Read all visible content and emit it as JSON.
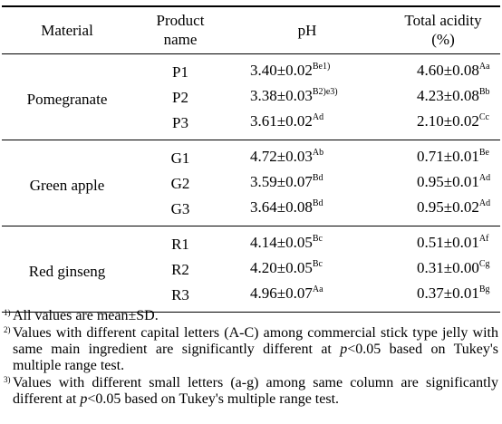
{
  "header": {
    "material": "Material",
    "product_line1": "Product",
    "product_line2": "name",
    "ph": "pH",
    "acidity_line1": "Total acidity",
    "acidity_line2": "(%)"
  },
  "groups": [
    {
      "material": "Pomegranate",
      "rows": [
        {
          "product": "P1",
          "ph": "3.40±0.02",
          "ph_sup": "Be1)",
          "acid": "4.60±0.08",
          "acid_sup": "Aa"
        },
        {
          "product": "P2",
          "ph": "3.38±0.03",
          "ph_sup": "B2)e3)",
          "acid": "4.23±0.08",
          "acid_sup": "Bb"
        },
        {
          "product": "P3",
          "ph": "3.61±0.02",
          "ph_sup": "Ad",
          "acid": "2.10±0.02",
          "acid_sup": "Cc"
        }
      ]
    },
    {
      "material": "Green apple",
      "rows": [
        {
          "product": "G1",
          "ph": "4.72±0.03",
          "ph_sup": "Ab",
          "acid": "0.71±0.01",
          "acid_sup": "Be"
        },
        {
          "product": "G2",
          "ph": "3.59±0.07",
          "ph_sup": "Bd",
          "acid": "0.95±0.01",
          "acid_sup": "Ad"
        },
        {
          "product": "G3",
          "ph": "3.64±0.08",
          "ph_sup": "Bd",
          "acid": "0.95±0.02",
          "acid_sup": "Ad"
        }
      ]
    },
    {
      "material": "Red ginseng",
      "rows": [
        {
          "product": "R1",
          "ph": "4.14±0.05",
          "ph_sup": "Bc",
          "acid": "0.51±0.01",
          "acid_sup": "Af"
        },
        {
          "product": "R2",
          "ph": "4.20±0.05",
          "ph_sup": "Bc",
          "acid": "0.31±0.00",
          "acid_sup": "Cg"
        },
        {
          "product": "R3",
          "ph": "4.96±0.07",
          "ph_sup": "Aa",
          "acid": "0.37±0.01",
          "acid_sup": "Bg"
        }
      ]
    }
  ],
  "footnotes": {
    "n1": {
      "marker": "1)",
      "text": "All values are mean±SD."
    },
    "n2": {
      "marker": "2)",
      "before": "Values with different capital letters (A-C) among commercial stick type jelly with same main ingredient are significantly different at ",
      "p": "p",
      "after": "<0.05 based on Tukey's multiple range test."
    },
    "n3": {
      "marker": "3)",
      "before": "Values with different small letters (a-g) among same column are significantly different at ",
      "p": "p",
      "after": "<0.05 based on Tukey's multiple range test."
    }
  }
}
